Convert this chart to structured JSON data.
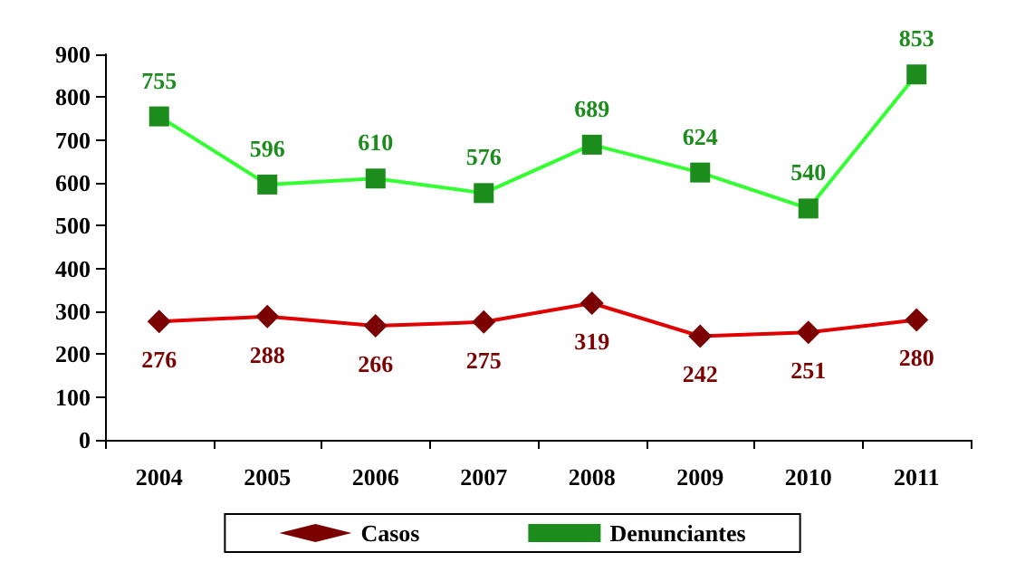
{
  "chart_data": {
    "type": "line",
    "categories": [
      "2004",
      "2005",
      "2006",
      "2007",
      "2008",
      "2009",
      "2010",
      "2011"
    ],
    "series": [
      {
        "name": "Casos",
        "color": "#e00000",
        "values": [
          276,
          288,
          266,
          275,
          319,
          242,
          251,
          280
        ]
      },
      {
        "name": "Denunciantes",
        "color": "#33ff33",
        "values": [
          755,
          596,
          610,
          576,
          689,
          624,
          540,
          853
        ]
      }
    ],
    "ylim": [
      0,
      900
    ],
    "yticks": [
      0,
      100,
      200,
      300,
      400,
      500,
      600,
      700,
      800,
      900
    ],
    "grid": false,
    "legend": "bottom",
    "data_labels": true,
    "marker": [
      "diamond",
      "square"
    ]
  }
}
